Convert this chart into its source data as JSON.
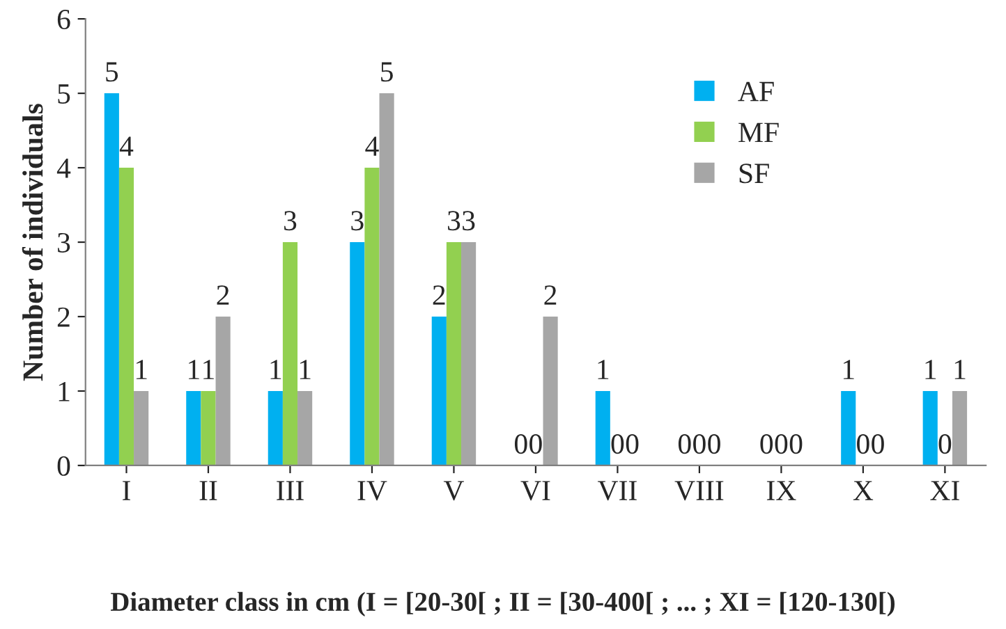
{
  "chart_data": {
    "type": "bar",
    "xlabel": "Diameter class in cm (I = [20-30[ ; II = [30-400[ ; ... ; XI = [120-130[)",
    "ylabel": "Number of individuals",
    "categories": [
      "I",
      "II",
      "III",
      "IV",
      "V",
      "VI",
      "VII",
      "VIII",
      "IX",
      "X",
      "XI"
    ],
    "series": [
      {
        "name": "AF",
        "color": "#00b0f0",
        "values": [
          5,
          1,
          1,
          3,
          2,
          0,
          1,
          0,
          0,
          1,
          1
        ]
      },
      {
        "name": "MF",
        "color": "#92d050",
        "values": [
          4,
          1,
          3,
          4,
          3,
          0,
          0,
          0,
          0,
          0,
          0
        ]
      },
      {
        "name": "SF",
        "color": "#a6a6a6",
        "values": [
          1,
          2,
          1,
          5,
          3,
          2,
          0,
          0,
          0,
          0,
          1
        ]
      }
    ],
    "ylim": [
      0,
      6
    ],
    "yticks": [
      0,
      1,
      2,
      3,
      4,
      5,
      6
    ],
    "data_labels": true,
    "grid": false,
    "legend": "top right"
  }
}
